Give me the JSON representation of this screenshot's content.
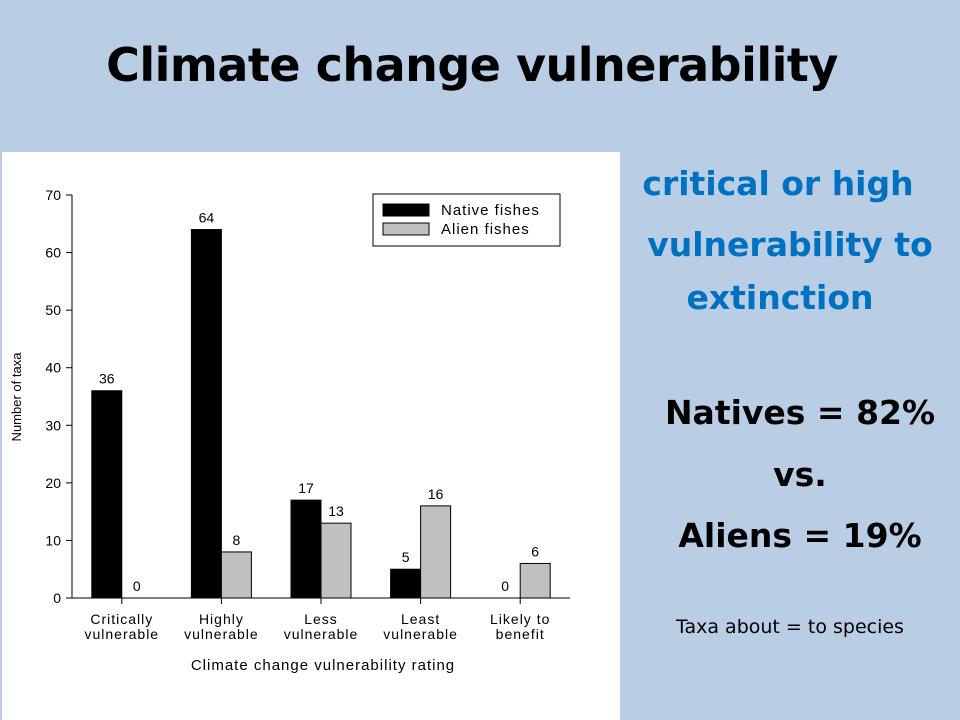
{
  "slide": {
    "title": "Climate change vulnerability",
    "note_line1": "critical or high",
    "note_line2": "vulnerability to",
    "note_line3": "extinction",
    "natives": "Natives = 82%",
    "vs": "vs.",
    "aliens": "Aliens = 19%",
    "footnote": "Taxa about = to species"
  },
  "colors": {
    "background": "#b9cde5",
    "native": "#000000",
    "alien": "#c0c0c0",
    "accent": "#0070c0"
  },
  "chart_data": {
    "type": "bar",
    "title": "",
    "xlabel": "Climate change vulnerability rating",
    "ylabel": "Number of taxa",
    "ylim": [
      0,
      70
    ],
    "yticks": [
      0,
      10,
      20,
      30,
      40,
      50,
      60,
      70
    ],
    "categories": [
      [
        "Critically",
        "vulnerable"
      ],
      [
        "Highly",
        "vulnerable"
      ],
      [
        "Less",
        "vulnerable"
      ],
      [
        "Least",
        "vulnerable"
      ],
      [
        "Likely to",
        "benefit"
      ]
    ],
    "series": [
      {
        "name": "Native fishes",
        "color": "#000000",
        "values": [
          36,
          64,
          17,
          5,
          0
        ]
      },
      {
        "name": "Alien fishes",
        "color": "#c0c0c0",
        "values": [
          0,
          8,
          13,
          16,
          6
        ]
      }
    ],
    "legend_position": "top-right",
    "grid": false
  }
}
